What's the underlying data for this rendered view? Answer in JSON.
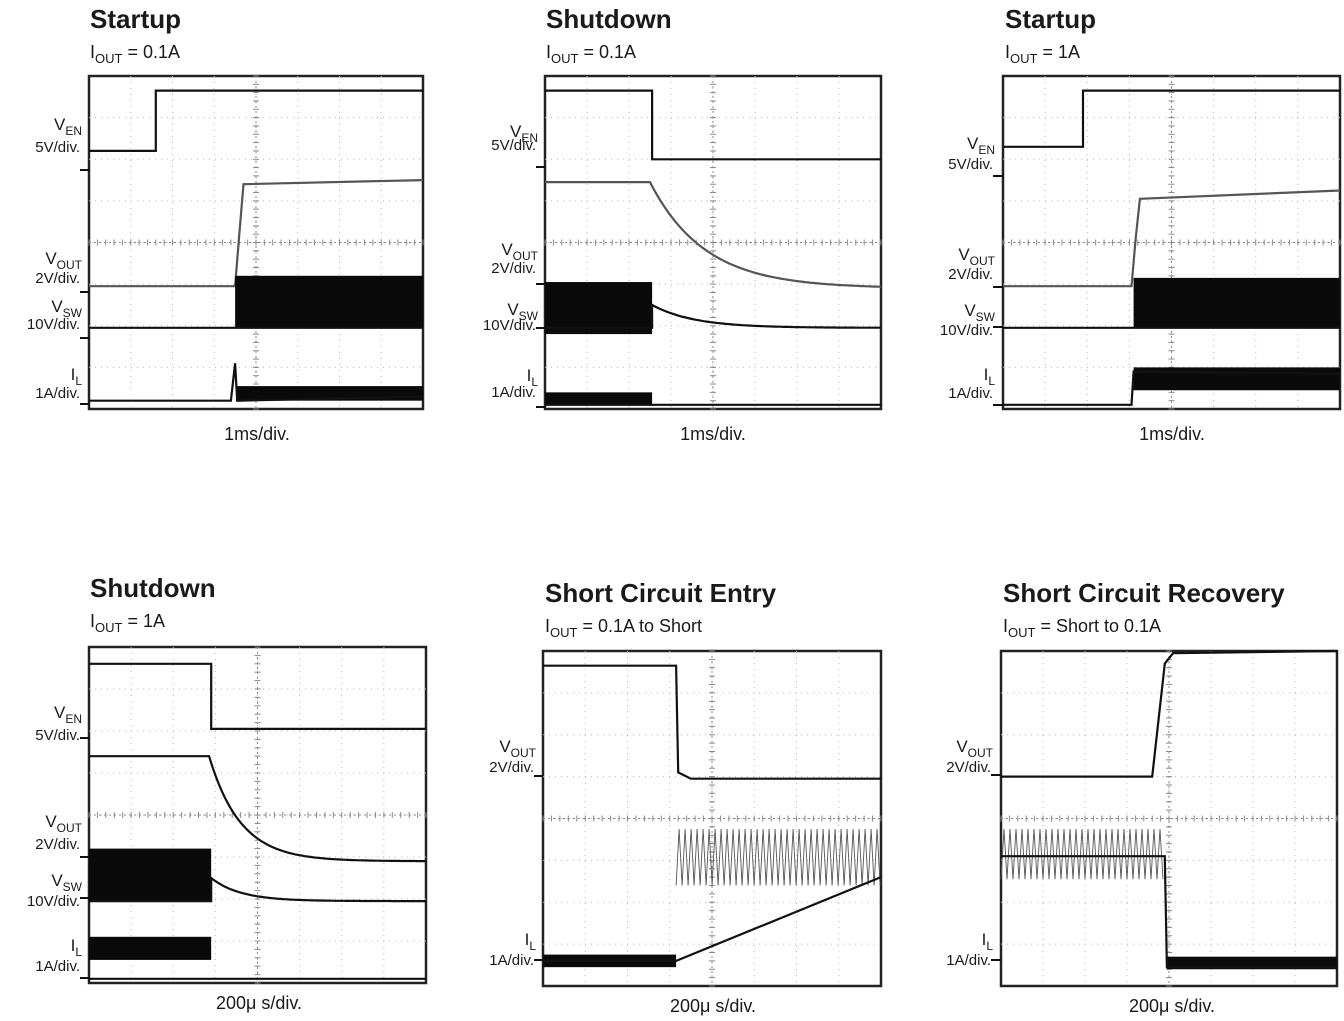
{
  "chart_data": [
    {
      "type": "line",
      "title": "Startup",
      "subtitle": {
        "prefix": "I",
        "sub": "OUT",
        "rest": " = 0.1A"
      },
      "xlabel": "1ms/div.",
      "channels": [
        {
          "name": "V",
          "sub": "EN",
          "scale": "5V/div."
        },
        {
          "name": "V",
          "sub": "OUT",
          "scale": "2V/div."
        },
        {
          "name": "V",
          "sub": "SW",
          "scale": "10V/div."
        },
        {
          "name": "I",
          "sub": "L",
          "scale": "1A/div."
        }
      ],
      "series": [
        {
          "name": "VEN",
          "kind": "step",
          "x": [
            0,
            1.6,
            1.6,
            8
          ],
          "y": [
            6.2,
            6.2,
            7.65,
            7.65
          ]
        },
        {
          "name": "VOUT",
          "kind": "rise",
          "x": [
            0,
            3.5,
            3.6,
            3.7,
            8
          ],
          "y": [
            2.95,
            2.95,
            4.2,
            5.4,
            5.5
          ]
        },
        {
          "name": "VSW",
          "kind": "switch",
          "x": [
            0,
            3.5,
            3.5,
            8
          ],
          "y": [
            1.95,
            1.95,
            1.95,
            1.95
          ],
          "burst": {
            "start": 3.5,
            "end": 8,
            "low": 1.95,
            "high": 3.2
          }
        },
        {
          "name": "IL",
          "kind": "spike",
          "x": [
            0,
            3.4,
            3.5,
            3.55,
            8
          ],
          "y": [
            0.2,
            0.2,
            1.1,
            0.2,
            0.3
          ],
          "burst": {
            "start": 3.55,
            "end": 8,
            "low": 0.2,
            "high": 0.55
          }
        }
      ]
    },
    {
      "type": "line",
      "title": "Shutdown",
      "subtitle": {
        "prefix": "I",
        "sub": "OUT",
        "rest": " = 0.1A"
      },
      "xlabel": "1ms/div.",
      "channels": [
        {
          "name": "V",
          "sub": "EN",
          "scale": "5V/div."
        },
        {
          "name": "V",
          "sub": "OUT",
          "scale": "2V/div."
        },
        {
          "name": "V",
          "sub": "SW",
          "scale": "10V/div."
        },
        {
          "name": "I",
          "sub": "L",
          "scale": "1A/div."
        }
      ],
      "series": [
        {
          "name": "VEN",
          "kind": "step",
          "x": [
            0,
            2.55,
            2.55,
            8
          ],
          "y": [
            7.65,
            7.65,
            6.0,
            6.0
          ]
        },
        {
          "name": "VOUT",
          "kind": "decay",
          "x": [
            0,
            2.5,
            8
          ],
          "y": [
            5.45,
            5.45,
            2.9
          ],
          "tau": 1.3
        },
        {
          "name": "VSW",
          "kind": "decay",
          "x": [
            0,
            2.55,
            8
          ],
          "y": [
            1.95,
            2.5,
            1.95
          ],
          "tau": 1.0,
          "burst": {
            "start": 0,
            "end": 2.55,
            "low": 1.8,
            "high": 3.05
          }
        },
        {
          "name": "IL",
          "kind": "flat",
          "x": [
            0,
            8
          ],
          "y": [
            0.1,
            0.1
          ],
          "burst": {
            "start": 0,
            "end": 2.55,
            "low": 0.1,
            "high": 0.4
          }
        }
      ]
    },
    {
      "type": "line",
      "title": "Startup",
      "subtitle": {
        "prefix": "I",
        "sub": "OUT",
        "rest": " = 1A"
      },
      "xlabel": "1ms/div.",
      "channels": [
        {
          "name": "V",
          "sub": "EN",
          "scale": "5V/div."
        },
        {
          "name": "V",
          "sub": "OUT",
          "scale": "2V/div."
        },
        {
          "name": "V",
          "sub": "SW",
          "scale": "10V/div."
        },
        {
          "name": "I",
          "sub": "L",
          "scale": "1A/div."
        }
      ],
      "series": [
        {
          "name": "VEN",
          "kind": "step",
          "x": [
            0,
            1.9,
            1.9,
            8
          ],
          "y": [
            6.3,
            6.3,
            7.65,
            7.65
          ]
        },
        {
          "name": "VOUT",
          "kind": "rise",
          "x": [
            0,
            3.05,
            3.15,
            3.25,
            8
          ],
          "y": [
            2.95,
            2.95,
            4.1,
            5.05,
            5.25
          ]
        },
        {
          "name": "VSW",
          "kind": "switch",
          "x": [
            0,
            3.1,
            8
          ],
          "y": [
            1.95,
            1.95,
            1.95
          ],
          "burst": {
            "start": 3.1,
            "end": 8,
            "low": 1.95,
            "high": 3.15
          }
        },
        {
          "name": "IL",
          "kind": "flat",
          "x": [
            0,
            3.05,
            3.1,
            8
          ],
          "y": [
            0.1,
            0.1,
            0.9,
            0.85
          ],
          "burst": {
            "start": 3.1,
            "end": 8,
            "low": 0.45,
            "high": 1.0
          }
        }
      ]
    },
    {
      "type": "line",
      "title": "Shutdown",
      "subtitle": {
        "prefix": "I",
        "sub": "OUT",
        "rest": " = 1A"
      },
      "xlabel": "200μ s/div.",
      "channels": [
        {
          "name": "V",
          "sub": "EN",
          "scale": "5V/div."
        },
        {
          "name": "V",
          "sub": "OUT",
          "scale": "2V/div."
        },
        {
          "name": "V",
          "sub": "SW",
          "scale": "10V/div."
        },
        {
          "name": "I",
          "sub": "L",
          "scale": "1A/div."
        }
      ],
      "series": [
        {
          "name": "VEN",
          "kind": "step",
          "x": [
            0,
            2.9,
            2.9,
            8
          ],
          "y": [
            7.6,
            7.6,
            6.05,
            6.05
          ]
        },
        {
          "name": "VOUT",
          "kind": "decay",
          "x": [
            0,
            2.85,
            8
          ],
          "y": [
            5.4,
            5.4,
            2.9
          ],
          "tau": 0.75
        },
        {
          "name": "VSW",
          "kind": "decay",
          "x": [
            0,
            2.9,
            8
          ],
          "y": [
            1.95,
            2.5,
            1.95
          ],
          "tau": 0.7,
          "burst": {
            "start": 0,
            "end": 2.9,
            "low": 1.95,
            "high": 3.2
          }
        },
        {
          "name": "IL",
          "kind": "flat",
          "x": [
            0,
            8
          ],
          "y": [
            0.1,
            0.1
          ],
          "burst": {
            "start": 0,
            "end": 2.9,
            "low": 0.55,
            "high": 1.1
          }
        }
      ]
    },
    {
      "type": "line",
      "title": "Short Circuit Entry",
      "subtitle": {
        "prefix": "I",
        "sub": "OUT",
        "rest": " = 0.1A to Short"
      },
      "xlabel": "200μ s/div.",
      "channels": [
        {
          "name": "V",
          "sub": "OUT",
          "scale": "2V/div."
        },
        {
          "name": "I",
          "sub": "L",
          "scale": "1A/div."
        }
      ],
      "series": [
        {
          "name": "VOUT",
          "kind": "drop",
          "x": [
            0,
            3.15,
            3.2,
            3.5,
            8
          ],
          "y": [
            7.65,
            7.65,
            5.1,
            4.95,
            4.95
          ]
        },
        {
          "name": "IL",
          "kind": "switch",
          "x": [
            0,
            3.15,
            8
          ],
          "y": [
            0.6,
            0.6,
            2.6
          ],
          "burst": {
            "start": 3.15,
            "end": 8,
            "low": 2.4,
            "high": 3.75
          },
          "burst2": {
            "start": 0,
            "end": 3.15,
            "low": 0.45,
            "high": 0.75
          }
        }
      ]
    },
    {
      "type": "line",
      "title": "Short Circuit Recovery",
      "subtitle": {
        "prefix": "I",
        "sub": "OUT",
        "rest": " = Short to 0.1A"
      },
      "xlabel": "200μ s/div.",
      "channels": [
        {
          "name": "V",
          "sub": "OUT",
          "scale": "2V/div."
        },
        {
          "name": "I",
          "sub": "L",
          "scale": "1A/div."
        }
      ],
      "series": [
        {
          "name": "VOUT",
          "kind": "rise",
          "x": [
            0,
            3.6,
            3.9,
            4.1,
            8
          ],
          "y": [
            5.0,
            5.0,
            7.7,
            7.95,
            8.0
          ]
        },
        {
          "name": "IL",
          "kind": "drop",
          "x": [
            0,
            3.9,
            3.95,
            8
          ],
          "y": [
            3.1,
            3.1,
            0.45,
            0.45
          ],
          "burst": {
            "start": 0,
            "end": 3.9,
            "low": 2.55,
            "high": 3.75
          },
          "burst2": {
            "start": 3.95,
            "end": 8,
            "low": 0.4,
            "high": 0.7
          }
        }
      ]
    }
  ]
}
